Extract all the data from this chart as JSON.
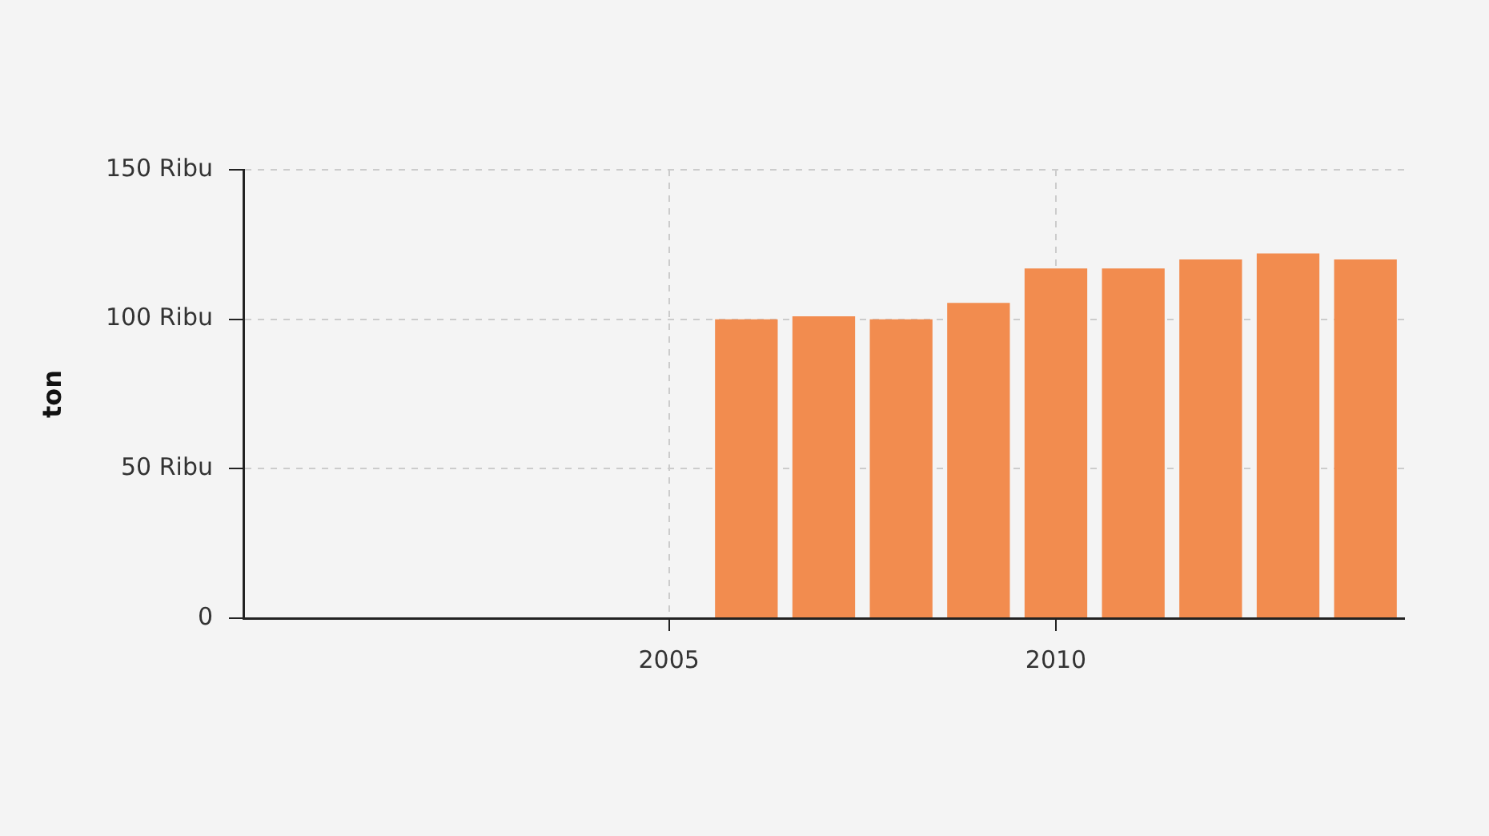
{
  "chart_data": {
    "type": "bar",
    "ylabel": "ton",
    "x": [
      2006,
      2007,
      2008,
      2009,
      2010,
      2011,
      2012,
      2013,
      2014
    ],
    "values": [
      100,
      101,
      100,
      105.5,
      117,
      117,
      120,
      122,
      120
    ],
    "color": "#f28c4f",
    "xlim": [
      1999.5,
      2014.5
    ],
    "xticks": [
      2005,
      2010
    ],
    "ylim": [
      0,
      150
    ],
    "yticks": [
      0,
      {
        "value": 50,
        "label": "50 Ribu"
      },
      {
        "value": 100,
        "label": "100 Ribu"
      },
      {
        "value": 150,
        "label": "150 Ribu"
      }
    ],
    "grid": true,
    "legend": false
  }
}
